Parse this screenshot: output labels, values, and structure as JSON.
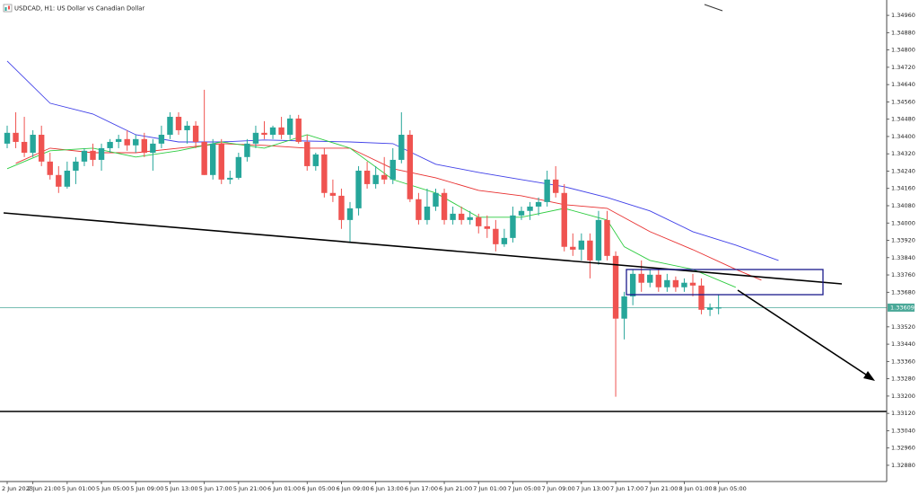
{
  "chart_data": {
    "type": "candlestick",
    "title": "USDCAD, H1:  US Dollar vs Canadian Dollar",
    "categories": [
      "2 Jun 2023",
      null,
      null,
      "2 Jun 21:00",
      null,
      null,
      null,
      "5 Jun 01:00",
      null,
      null,
      null,
      "5 Jun 05:00",
      null,
      null,
      null,
      "5 Jun 09:00",
      null,
      null,
      null,
      "5 Jun 13:00",
      null,
      null,
      null,
      "5 Jun 17:00",
      null,
      null,
      null,
      "5 Jun 21:00",
      null,
      null,
      null,
      "6 Jun 01:00",
      null,
      null,
      null,
      "6 Jun 05:00",
      null,
      null,
      null,
      "6 Jun 09:00",
      null,
      null,
      null,
      "6 Jun 13:00",
      null,
      null,
      null,
      "6 Jun 17:00",
      null,
      null,
      null,
      "6 Jun 21:00",
      null,
      null,
      null,
      "7 Jun 01:00",
      null,
      null,
      null,
      "7 Jun 05:00",
      null,
      null,
      null,
      "7 Jun 09:00",
      null,
      null,
      null,
      "7 Jun 13:00",
      null,
      null,
      null,
      "7 Jun 17:00",
      null,
      null,
      null,
      "7 Jun 21:00",
      null,
      null,
      null,
      "8 Jun 01:00",
      null,
      null,
      null,
      "8 Jun 05:00"
    ],
    "candles": [
      [
        1.34367,
        1.3445,
        1.34346,
        1.34417
      ],
      [
        1.34417,
        1.34512,
        1.34346,
        1.34375
      ],
      [
        1.34375,
        1.34491,
        1.34305,
        1.34325
      ],
      [
        1.34325,
        1.34429,
        1.34305,
        1.34408
      ],
      [
        1.34408,
        1.3445,
        1.34263,
        1.34284
      ],
      [
        1.34284,
        1.34325,
        1.34201,
        1.34222
      ],
      [
        1.34222,
        1.34263,
        1.34139,
        1.34168
      ],
      [
        1.34168,
        1.34284,
        1.34159,
        1.34242
      ],
      [
        1.34242,
        1.34305,
        1.3418,
        1.34284
      ],
      [
        1.34284,
        1.34346,
        1.34263,
        1.34334
      ],
      [
        1.34334,
        1.34367,
        1.34263,
        1.34292
      ],
      [
        1.34292,
        1.34367,
        1.34242,
        1.34346
      ],
      [
        1.34346,
        1.34388,
        1.34325,
        1.34375
      ],
      [
        1.34375,
        1.34408,
        1.34346,
        1.34388
      ],
      [
        1.34388,
        1.34429,
        1.34334,
        1.34359
      ],
      [
        1.34359,
        1.34408,
        1.34325,
        1.34388
      ],
      [
        1.34388,
        1.34417,
        1.34305,
        1.34325
      ],
      [
        1.34325,
        1.34388,
        1.34242,
        1.34367
      ],
      [
        1.34367,
        1.3445,
        1.34346,
        1.34408
      ],
      [
        1.34408,
        1.34512,
        1.34388,
        1.34491
      ],
      [
        1.34491,
        1.34512,
        1.34408,
        1.34429
      ],
      [
        1.34429,
        1.34471,
        1.34367,
        1.3445
      ],
      [
        1.3445,
        1.34471,
        1.34346,
        1.34375
      ],
      [
        1.34375,
        1.34616,
        1.34222,
        1.34222
      ],
      [
        1.34222,
        1.34388,
        1.34201,
        1.34367
      ],
      [
        1.34367,
        1.34388,
        1.3418,
        1.34201
      ],
      [
        1.34201,
        1.34242,
        1.3418,
        1.34209
      ],
      [
        1.34209,
        1.34325,
        1.34201,
        1.34305
      ],
      [
        1.34305,
        1.34388,
        1.34284,
        1.34367
      ],
      [
        1.34367,
        1.3445,
        1.34346,
        1.34417
      ],
      [
        1.34417,
        1.34471,
        1.34388,
        1.34408
      ],
      [
        1.34408,
        1.3445,
        1.34388,
        1.34442
      ],
      [
        1.34442,
        1.34491,
        1.34388,
        1.34408
      ],
      [
        1.34408,
        1.345,
        1.34388,
        1.34483
      ],
      [
        1.34483,
        1.345,
        1.34367,
        1.34375
      ],
      [
        1.34375,
        1.34408,
        1.34242,
        1.34263
      ],
      [
        1.34263,
        1.34325,
        1.34242,
        1.34317
      ],
      [
        1.34317,
        1.34346,
        1.34118,
        1.34139
      ],
      [
        1.34139,
        1.34201,
        1.34097,
        1.34126
      ],
      [
        1.34126,
        1.34159,
        1.33973,
        1.34014
      ],
      [
        1.34014,
        1.34097,
        1.3391,
        1.34068
      ],
      [
        1.34068,
        1.34263,
        1.34035,
        1.34242
      ],
      [
        1.34242,
        1.34284,
        1.34159,
        1.3418
      ],
      [
        1.3418,
        1.34263,
        1.34159,
        1.34222
      ],
      [
        1.34222,
        1.34305,
        1.3418,
        1.34201
      ],
      [
        1.34201,
        1.34346,
        1.3418,
        1.34292
      ],
      [
        1.34292,
        1.34512,
        1.34276,
        1.34408
      ],
      [
        1.34408,
        1.34429,
        1.34097,
        1.3411
      ],
      [
        1.3411,
        1.34139,
        1.33993,
        1.34014
      ],
      [
        1.34014,
        1.34159,
        1.33993,
        1.34076
      ],
      [
        1.34076,
        1.34159,
        1.34056,
        1.34139
      ],
      [
        1.34139,
        1.34159,
        1.33993,
        1.34014
      ],
      [
        1.34014,
        1.34076,
        1.33993,
        1.34043
      ],
      [
        1.34043,
        1.34076,
        1.33993,
        1.34014
      ],
      [
        1.34014,
        1.34056,
        1.33993,
        1.34027
      ],
      [
        1.34027,
        1.34043,
        1.33952,
        1.33985
      ],
      [
        1.33985,
        1.34035,
        1.33931,
        1.33973
      ],
      [
        1.33973,
        1.34014,
        1.33869,
        1.33902
      ],
      [
        1.33902,
        1.33973,
        1.3389,
        1.33931
      ],
      [
        1.33931,
        1.34076,
        1.3391,
        1.34035
      ],
      [
        1.34035,
        1.34076,
        1.34014,
        1.34056
      ],
      [
        1.34056,
        1.34097,
        1.34014,
        1.34076
      ],
      [
        1.34076,
        1.34118,
        1.34035,
        1.34097
      ],
      [
        1.34097,
        1.34242,
        1.34076,
        1.34201
      ],
      [
        1.34201,
        1.34263,
        1.34118,
        1.34139
      ],
      [
        1.34139,
        1.3418,
        1.33869,
        1.3389
      ],
      [
        1.3389,
        1.33952,
        1.33848,
        1.33877
      ],
      [
        1.33877,
        1.33952,
        1.33827,
        1.33919
      ],
      [
        1.33919,
        1.33952,
        1.33744,
        1.33827
      ],
      [
        1.33827,
        1.34056,
        1.33807,
        1.34014
      ],
      [
        1.34014,
        1.34056,
        1.33827,
        1.33848
      ],
      [
        1.33848,
        1.33869,
        1.33197,
        1.33558
      ],
      [
        1.33558,
        1.33682,
        1.33462,
        1.33661
      ],
      [
        1.33661,
        1.33786,
        1.3362,
        1.33765
      ],
      [
        1.33765,
        1.33827,
        1.33682,
        1.33724
      ],
      [
        1.33724,
        1.33786,
        1.33703,
        1.33761
      ],
      [
        1.33761,
        1.33786,
        1.33682,
        1.33703
      ],
      [
        1.33703,
        1.33765,
        1.33682,
        1.33736
      ],
      [
        1.33736,
        1.33753,
        1.33682,
        1.33703
      ],
      [
        1.33703,
        1.33744,
        1.33682,
        1.33724
      ],
      [
        1.33724,
        1.33765,
        1.33661,
        1.33711
      ],
      [
        1.33711,
        1.33744,
        1.33578,
        1.33599
      ],
      [
        1.33599,
        1.33628,
        1.3357,
        1.33608
      ],
      [
        1.33608,
        1.3367,
        1.33578,
        1.33609
      ]
    ],
    "up_color": "#26a69a",
    "down_color": "#ef5350",
    "series": [
      {
        "color": "#4040e8",
        "x": [
          0,
          5,
          10,
          15,
          20,
          25,
          30,
          35,
          40,
          45,
          50,
          55,
          60,
          65,
          70,
          75,
          80,
          85,
          90
        ],
        "values": [
          1.34749,
          1.34554,
          1.34504,
          1.34408,
          1.34375,
          1.34375,
          1.34384,
          1.34379,
          1.34375,
          1.34367,
          1.34272,
          1.34234,
          1.34201,
          1.34168,
          1.34118,
          1.34056,
          1.3396,
          1.33898,
          1.33827
        ]
      },
      {
        "color": "#e83030",
        "x": [
          1,
          5,
          10,
          15,
          20,
          25,
          30,
          35,
          40,
          45,
          50,
          55,
          60,
          65,
          70,
          75,
          80,
          85,
          88
        ],
        "values": [
          1.34276,
          1.34346,
          1.34325,
          1.34325,
          1.34346,
          1.34367,
          1.34359,
          1.34346,
          1.34346,
          1.34251,
          1.34209,
          1.34151,
          1.34126,
          1.34085,
          1.34068,
          1.3396,
          1.33877,
          1.33786,
          1.33736
        ]
      },
      {
        "color": "#2ecc40",
        "x": [
          0,
          5,
          10,
          15,
          20,
          25,
          30,
          35,
          40,
          45,
          50,
          55,
          60,
          65,
          70,
          72,
          75,
          80,
          85
        ],
        "values": [
          1.34251,
          1.34334,
          1.34346,
          1.34305,
          1.34334,
          1.34375,
          1.34346,
          1.34408,
          1.34346,
          1.34201,
          1.34139,
          1.34027,
          1.34027,
          1.34068,
          1.34014,
          1.3389,
          1.33827,
          1.33786,
          1.33703
        ]
      }
    ],
    "current_price": 1.33609,
    "current_price_color": "#4aa898",
    "ylim": [
      1.32805,
      1.35031
    ],
    "yticks": [
      {
        "value": 1.3496,
        "label": "1.34960"
      },
      {
        "value": 1.3488,
        "label": "1.34880"
      },
      {
        "value": 1.348,
        "label": "1.34800"
      },
      {
        "value": 1.3472,
        "label": "1.34720"
      },
      {
        "value": 1.3464,
        "label": "1.34640"
      },
      {
        "value": 1.3456,
        "label": "1.34560"
      },
      {
        "value": 1.3448,
        "label": "1.34480"
      },
      {
        "value": 1.344,
        "label": "1.34400"
      },
      {
        "value": 1.3432,
        "label": "1.34320"
      },
      {
        "value": 1.3424,
        "label": "1.34240"
      },
      {
        "value": 1.3416,
        "label": "1.34160"
      },
      {
        "value": 1.3408,
        "label": "1.34080"
      },
      {
        "value": 1.34,
        "label": "1.34000"
      },
      {
        "value": 1.3392,
        "label": "1.33920"
      },
      {
        "value": 1.3384,
        "label": "1.33840"
      },
      {
        "value": 1.3376,
        "label": "1.33760"
      },
      {
        "value": 1.3368,
        "label": "1.33680"
      },
      {
        "value": 1.3352,
        "label": "1.33520"
      },
      {
        "value": 1.3344,
        "label": "1.33440"
      },
      {
        "value": 1.3336,
        "label": "1.33360"
      },
      {
        "value": 1.3328,
        "label": "1.33280"
      },
      {
        "value": 1.332,
        "label": "1.33200"
      },
      {
        "value": 1.3312,
        "label": "1.33120"
      },
      {
        "value": 1.3304,
        "label": "1.33040"
      },
      {
        "value": 1.3296,
        "label": "1.32960"
      },
      {
        "value": 1.3288,
        "label": "1.32880"
      }
    ],
    "grid": false
  }
}
